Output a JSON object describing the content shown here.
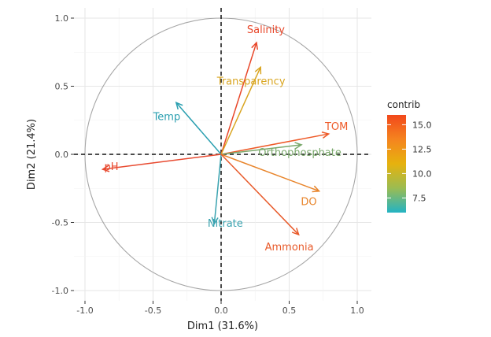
{
  "chart_data": {
    "type": "scatter",
    "subtype": "pca-variable-correlation-circle",
    "title": "",
    "xlabel": "Dim1 (31.6%)",
    "ylabel": "Dim2 (21.4%)",
    "xlim": [
      -1.0,
      1.0
    ],
    "ylim": [
      -1.0,
      1.0
    ],
    "x_ticks": [
      "-1.0",
      "-0.5",
      "0.0",
      "0.5",
      "1.0"
    ],
    "y_ticks": [
      "-1.0",
      "-0.5",
      "0.0",
      "0.5",
      "1.0"
    ],
    "grid": true,
    "unit_circle": true,
    "variables": [
      {
        "name": "Salinity",
        "x": 0.26,
        "y": 0.82,
        "contrib": 16.0,
        "color": "#e8472a"
      },
      {
        "name": "Transparency",
        "x": 0.29,
        "y": 0.64,
        "contrib": 12.8,
        "color": "#d9a520"
      },
      {
        "name": "Temp",
        "x": -0.33,
        "y": 0.38,
        "contrib": 7.0,
        "color": "#2a9fb0"
      },
      {
        "name": "TOM",
        "x": 0.79,
        "y": 0.15,
        "contrib": 15.5,
        "color": "#ee5a28"
      },
      {
        "name": "Orthophosphate",
        "x": 0.59,
        "y": 0.07,
        "contrib": 9.0,
        "color": "#7aa86b"
      },
      {
        "name": "pH",
        "x": -0.87,
        "y": -0.11,
        "contrib": 15.8,
        "color": "#e84a30"
      },
      {
        "name": "DO",
        "x": 0.72,
        "y": -0.27,
        "contrib": 13.5,
        "color": "#e8842a"
      },
      {
        "name": "Nitrate",
        "x": -0.05,
        "y": -0.51,
        "contrib": 7.2,
        "color": "#3aa3b0"
      },
      {
        "name": "Ammonia",
        "x": 0.57,
        "y": -0.59,
        "contrib": 15.2,
        "color": "#e85a2a"
      }
    ],
    "legend": {
      "title": "contrib",
      "placement": "right",
      "ticks": [
        "15.0",
        "12.5",
        "10.0",
        "7.5"
      ],
      "tick_values": [
        15.0,
        12.5,
        10.0,
        7.5
      ],
      "range": [
        6.0,
        16.0
      ],
      "gradient": [
        "#23b3c4",
        "#9bbc52",
        "#e6b20e",
        "#f5841f",
        "#f2481b"
      ]
    }
  }
}
